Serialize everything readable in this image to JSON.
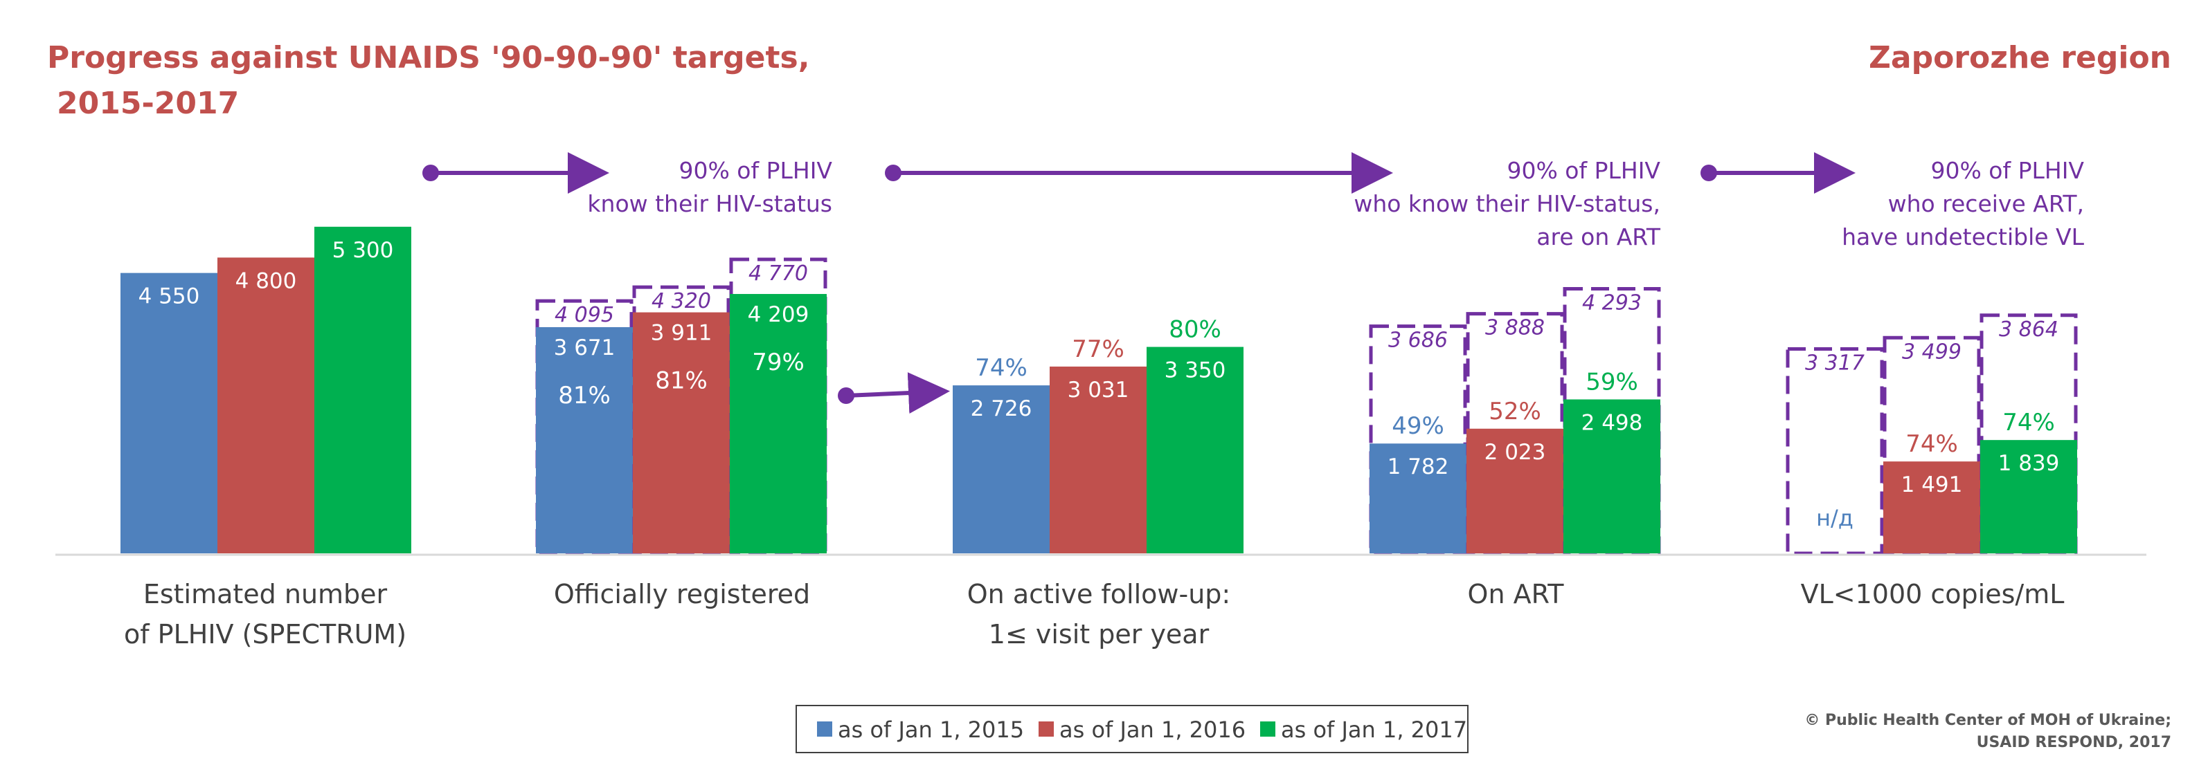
{
  "title_line1": "Progress against UNAIDS '90-90-90' targets,",
  "title_line2": "2015-2017",
  "region": "Zaporozhe  region",
  "colors": {
    "title": "#c0504d",
    "purple": "#7030a0",
    "blue": "#4f81bd",
    "red": "#c0504d",
    "green": "#00b050",
    "axis": "#d9d9d9"
  },
  "targets": [
    {
      "line1": "90% of PLHIV",
      "line2": "know their HIV-status",
      "line3": ""
    },
    {
      "line1": "90% of PLHIV",
      "line2": "who know their HIV-status,",
      "line3": "are on ART"
    },
    {
      "line1": "90% of PLHIV",
      "line2": "who receive ART,",
      "line3": "have undetectible VL"
    }
  ],
  "chart_data": {
    "type": "bar",
    "categories": [
      {
        "line1": "Estimated number",
        "line2": "of PLHIV (SPECTRUM)"
      },
      {
        "line1": "Officially registered",
        "line2": ""
      },
      {
        "line1": "On active follow-up:",
        "line2": "1≤ visit per year"
      },
      {
        "line1": "On ART",
        "line2": ""
      },
      {
        "line1": "VL<1000 copies/mL",
        "line2": ""
      }
    ],
    "series": [
      {
        "name": "as of Jan 1, 2015",
        "color": "#4f81bd",
        "values": [
          4550,
          3671,
          2726,
          1782,
          null
        ],
        "labels": [
          "4 550",
          "3 671",
          "2 726",
          "1 782",
          "н/д"
        ],
        "percents": [
          "",
          "81%",
          "74%",
          "49%",
          ""
        ],
        "targets": [
          null,
          4095,
          null,
          3686,
          3317
        ],
        "target_labels": [
          "",
          "4 095",
          "",
          "3 686",
          "3 317"
        ]
      },
      {
        "name": "as of Jan 1, 2016",
        "color": "#c0504d",
        "values": [
          4800,
          3911,
          3031,
          2023,
          1491
        ],
        "labels": [
          "4 800",
          "3 911",
          "3 031",
          "2 023",
          "1 491"
        ],
        "percents": [
          "",
          "81%",
          "77%",
          "52%",
          "74%"
        ],
        "targets": [
          null,
          4320,
          null,
          3888,
          3499
        ],
        "target_labels": [
          "",
          "4 320",
          "",
          "3 888",
          "3 499"
        ]
      },
      {
        "name": "as of Jan 1, 2017",
        "color": "#00b050",
        "values": [
          5300,
          4209,
          3350,
          2498,
          1839
        ],
        "labels": [
          "5 300",
          "4 209",
          "3 350",
          "2 498",
          "1 839"
        ],
        "percents": [
          "",
          "79%",
          "80%",
          "59%",
          "74%"
        ],
        "targets": [
          null,
          4770,
          null,
          4293,
          3864
        ],
        "target_labels": [
          "",
          "4 770",
          "",
          "4 293",
          "3 864"
        ]
      }
    ],
    "ylim": [
      0,
      5500
    ],
    "legend_position": "bottom-center"
  },
  "footer_line1": "© Public Health Center of MOH of Ukraine;",
  "footer_line2": "USAID RESPOND, 2017"
}
